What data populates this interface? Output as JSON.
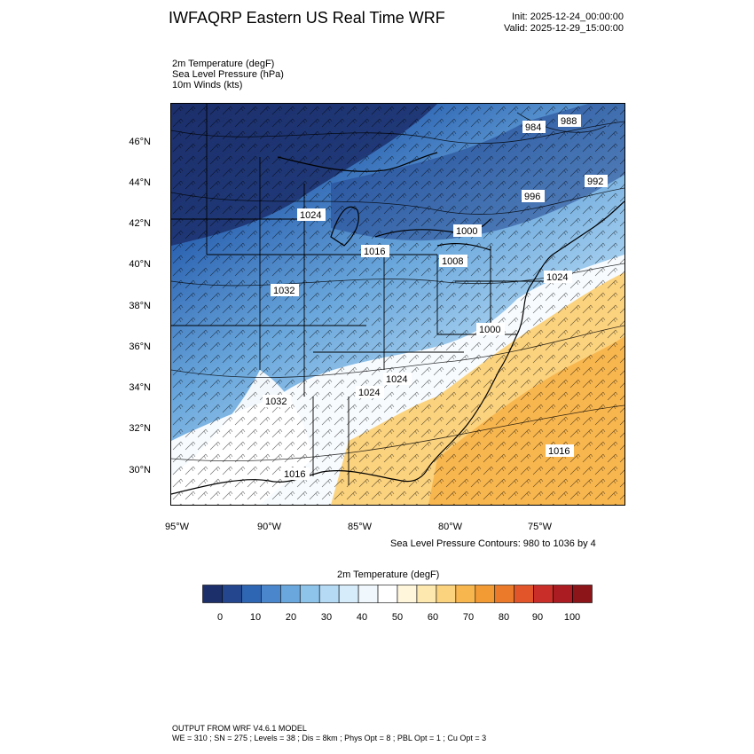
{
  "header": {
    "title": "IWFAQRP Eastern US Real Time WRF",
    "init": "Init: 2025-12-24_00:00:00",
    "valid": "Valid: 2025-12-29_15:00:00"
  },
  "fields": {
    "line1": "2m Temperature   (degF)",
    "line2": "Sea Level Pressure   (hPa)",
    "line3": "10m Winds   (kts)"
  },
  "axes": {
    "lat_labels": [
      "46°N",
      "44°N",
      "42°N",
      "40°N",
      "38°N",
      "36°N",
      "34°N",
      "32°N",
      "30°N"
    ],
    "lon_labels": [
      "95°W",
      "90°W",
      "85°W",
      "80°W",
      "75°W"
    ]
  },
  "pressure_labels": [
    "984",
    "988",
    "992",
    "996",
    "1000",
    "1008",
    "1016",
    "1024",
    "1024",
    "1016",
    "1032",
    "1024",
    "1032",
    "1024",
    "1000",
    "1016"
  ],
  "contour_note": "Sea Level Pressure Contours: 980 to 1036 by 4",
  "colorbar": {
    "title": "2m Temperature  (degF)",
    "colors": [
      "#1c2f6b",
      "#23468e",
      "#2f66b3",
      "#4a86cc",
      "#6aa7dc",
      "#8fc4ea",
      "#b5daf4",
      "#d7ecfa",
      "#f1f8fd",
      "#ffffff",
      "#fff6dc",
      "#fde8b0",
      "#fbd27e",
      "#f8b64f",
      "#f29a34",
      "#ec7a2b",
      "#e2552a",
      "#c92f28",
      "#aa1c22",
      "#8c1519"
    ],
    "tick_labels": [
      "0",
      "10",
      "20",
      "30",
      "40",
      "50",
      "60",
      "70",
      "80",
      "90",
      "100"
    ]
  },
  "footer": {
    "line1": "OUTPUT FROM WRF V4.6.1 MODEL",
    "line2": "WE = 310 ; SN = 275 ; Levels = 38 ; Dis = 8km ; Phys Opt = 8 ; PBL Opt = 1 ; Cu Opt = 3"
  }
}
